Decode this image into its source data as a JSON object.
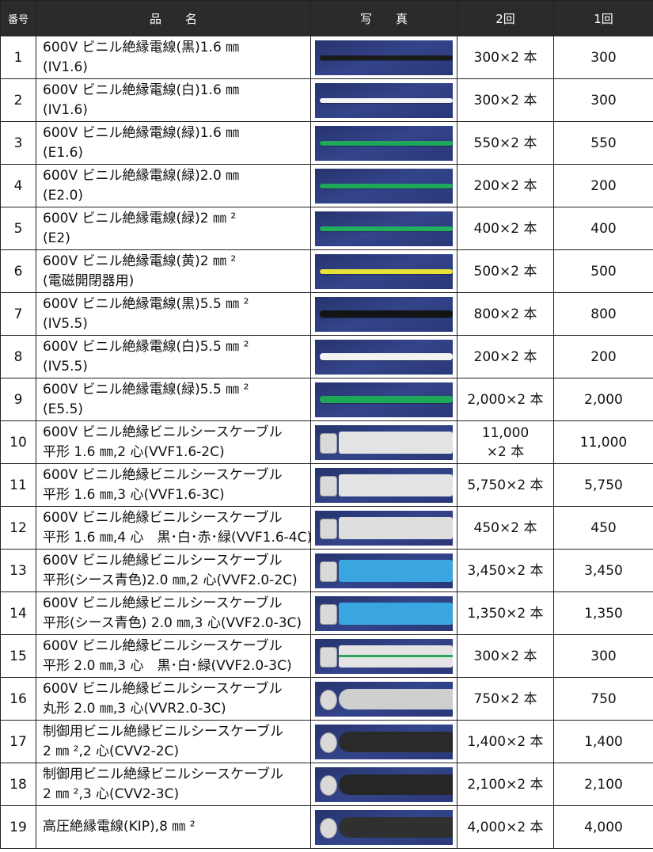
{
  "headers": {
    "no": "番号",
    "name": "品　　名",
    "photo": "写　　真",
    "qty2": "2回",
    "qty1": "1回"
  },
  "rows": [
    {
      "no": "1",
      "name1": "600V ビニル絶縁電線(黒)1.6 ㎜",
      "name2": "(IV1.6)",
      "qty2": "300×2 本",
      "qty2b": "",
      "qty1": "300",
      "kind": "wire",
      "color": "#1a1a1a"
    },
    {
      "no": "2",
      "name1": "600V ビニル絶縁電線(白)1.6 ㎜",
      "name2": "(IV1.6)",
      "qty2": "300×2 本",
      "qty2b": "",
      "qty1": "300",
      "kind": "wire",
      "color": "#f4f4f4"
    },
    {
      "no": "3",
      "name1": "600V ビニル絶縁電線(緑)1.6 ㎜",
      "name2": "(E1.6)",
      "qty2": "550×2 本",
      "qty2b": "",
      "qty1": "550",
      "kind": "wire",
      "color": "#1fa85a"
    },
    {
      "no": "4",
      "name1": "600V ビニル絶縁電線(緑)2.0 ㎜",
      "name2": "(E2.0)",
      "qty2": "200×2 本",
      "qty2b": "",
      "qty1": "200",
      "kind": "wire",
      "color": "#1fa85a"
    },
    {
      "no": "5",
      "name1": "600V ビニル絶縁電線(緑)2 ㎜ ²",
      "name2": "(E2)",
      "qty2": "400×2 本",
      "qty2b": "",
      "qty1": "400",
      "kind": "wire",
      "color": "#22b060"
    },
    {
      "no": "6",
      "name1": "600V ビニル絶縁電線(黄)2 ㎜ ²",
      "name2": "(電磁開閉器用)",
      "qty2": "500×2 本",
      "qty2b": "",
      "qty1": "500",
      "kind": "wire",
      "color": "#e6e23a"
    },
    {
      "no": "7",
      "name1": "600V ビニル絶縁電線(黒)5.5 ㎜ ²",
      "name2": "(IV5.5)",
      "qty2": "800×2 本",
      "qty2b": "",
      "qty1": "800",
      "kind": "wire-thick",
      "color": "#141414"
    },
    {
      "no": "8",
      "name1": "600V ビニル絶縁電線(白)5.5 ㎜ ²",
      "name2": "(IV5.5)",
      "qty2": "200×2 本",
      "qty2b": "",
      "qty1": "200",
      "kind": "wire-thick",
      "color": "#f2f2f2"
    },
    {
      "no": "9",
      "name1": "600V ビニル絶縁電線(緑)5.5 ㎜ ²",
      "name2": "(E5.5)",
      "qty2": "2,000×2 本",
      "qty2b": "",
      "qty1": "2,000",
      "kind": "wire-thick",
      "color": "#1da858"
    },
    {
      "no": "10",
      "name1": "600V ビニル絶縁ビニルシースケーブル",
      "name2": "平形 1.6 ㎜,2 心(VVF1.6-2C)",
      "qty2": "11,000",
      "qty2b": "×2 本",
      "qty1": "11,000",
      "kind": "cable",
      "color": "#e3e3e3"
    },
    {
      "no": "11",
      "name1": "600V ビニル絶縁ビニルシースケーブル",
      "name2": "平形 1.6 ㎜,3 心(VVF1.6-3C)",
      "qty2": "5,750×2 本",
      "qty2b": "",
      "qty1": "5,750",
      "kind": "cable",
      "color": "#e3e3e3"
    },
    {
      "no": "12",
      "name1": "600V ビニル絶縁ビニルシースケーブル",
      "name2": "平形 1.6 ㎜,4 心　黒･白･赤･緑(VVF1.6-4C)",
      "qty2": "450×2 本",
      "qty2b": "",
      "qty1": "450",
      "kind": "cable",
      "color": "#dedede"
    },
    {
      "no": "13",
      "name1": "600V ビニル絶縁ビニルシースケーブル",
      "name2": "平形(シース青色)2.0 ㎜,2 心(VVF2.0-2C)",
      "qty2": "3,450×2 本",
      "qty2b": "",
      "qty1": "3,450",
      "kind": "cable",
      "color": "#3aa6e0"
    },
    {
      "no": "14",
      "name1": "600V ビニル絶縁ビニルシースケーブル",
      "name2": "平形(シース青色) 2.0 ㎜,3 心(VVF2.0-3C)",
      "qty2": "1,350×2 本",
      "qty2b": "",
      "qty1": "1,350",
      "kind": "cable",
      "color": "#3aa6e0"
    },
    {
      "no": "15",
      "name1": "600V ビニル絶縁ビニルシースケーブル",
      "name2": "平形 2.0 ㎜,3 心　黒･白･緑(VVF2.0-3C)",
      "qty2": "300×2 本",
      "qty2b": "",
      "qty1": "300",
      "kind": "cable-stripe",
      "color": "#e3e3e3"
    },
    {
      "no": "16",
      "name1": "600V ビニル絶縁ビニルシースケーブル",
      "name2": "丸形 2.0 ㎜,3 心(VVR2.0-3C)",
      "qty2": "750×2 本",
      "qty2b": "",
      "qty1": "750",
      "kind": "cable-round",
      "color": "#cfcfcf"
    },
    {
      "no": "17",
      "name1": "制御用ビニル絶縁ビニルシースケーブル",
      "name2": "2 ㎜ ²,2 心(CVV2-2C)",
      "qty2": "1,400×2 本",
      "qty2b": "",
      "qty1": "1,400",
      "kind": "cable-round",
      "color": "#2a2a2a"
    },
    {
      "no": "18",
      "name1": "制御用ビニル絶縁ビニルシースケーブル",
      "name2": "2 ㎜ ²,3 心(CVV2-3C)",
      "qty2": "2,100×2 本",
      "qty2b": "",
      "qty1": "2,100",
      "kind": "cable-round",
      "color": "#262626"
    },
    {
      "no": "19",
      "name1": "高圧絶縁電線(KIP),8 ㎜ ²",
      "name2": "",
      "qty2": "4,000×2 本",
      "qty2b": "",
      "qty1": "4,000",
      "kind": "cable-round",
      "color": "#303030"
    }
  ]
}
